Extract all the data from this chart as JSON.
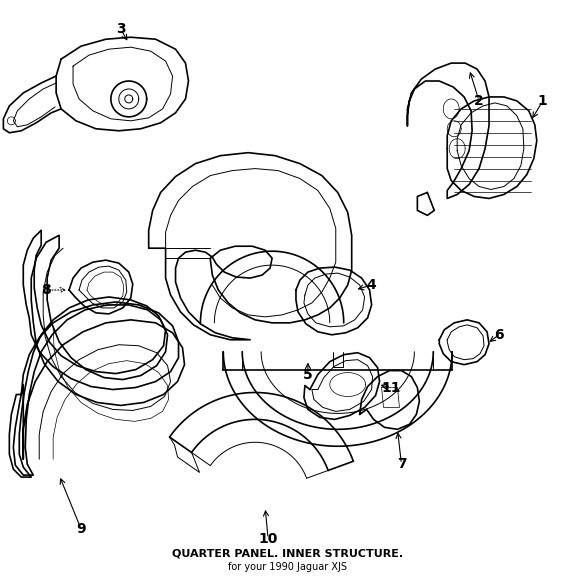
{
  "title": "QUARTER PANEL. INNER STRUCTURE.",
  "subtitle": "for your 1990 Jaguar XJS",
  "background_color": "#ffffff",
  "line_color": "#000000",
  "fig_width": 5.76,
  "fig_height": 5.81,
  "dpi": 100,
  "label_fontsize": 10,
  "title_fontsize": 8,
  "subtitle_fontsize": 7
}
